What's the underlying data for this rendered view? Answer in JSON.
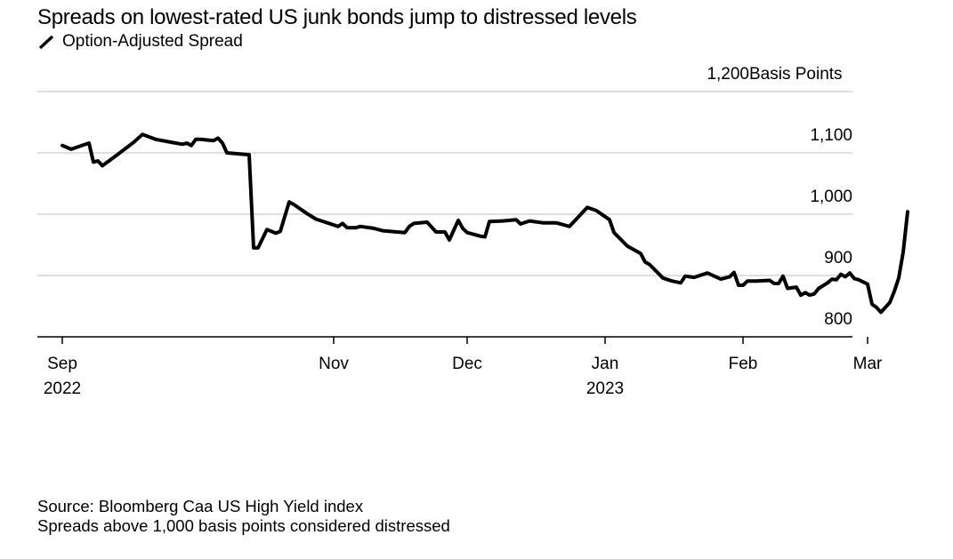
{
  "chart_data": {
    "type": "line",
    "title": "Spreads on lowest-rated US junk bonds jump to distressed levels",
    "legend": [
      "Option-Adjusted Spread"
    ],
    "ylabel": "Basis Points",
    "ylim": [
      800,
      1200
    ],
    "y_ticks": [
      {
        "value": 800,
        "label": "800"
      },
      {
        "value": 900,
        "label": "900"
      },
      {
        "value": 1000,
        "label": "1,000"
      },
      {
        "value": 1100,
        "label": "1,100"
      },
      {
        "value": 1200,
        "label": "1,200"
      }
    ],
    "x_ticks": [
      {
        "day": 0,
        "label": "Sep",
        "sublabel": "2022"
      },
      {
        "day": 61,
        "label": "Nov",
        "sublabel": ""
      },
      {
        "day": 91,
        "label": "Dec",
        "sublabel": ""
      },
      {
        "day": 122,
        "label": "Jan",
        "sublabel": "2023"
      },
      {
        "day": 153,
        "label": "Feb",
        "sublabel": ""
      },
      {
        "day": 181,
        "label": "Mar",
        "sublabel": ""
      }
    ],
    "x_unit": "days since Sep 1, 2022",
    "series": [
      {
        "name": "Option-Adjusted Spread",
        "x": [
          0,
          2,
          6,
          7,
          8,
          9,
          12,
          16,
          18,
          21,
          24,
          27,
          28,
          29,
          30,
          31,
          34,
          35,
          36,
          37,
          42,
          43,
          44,
          46,
          48,
          49,
          51,
          52,
          55,
          57,
          62,
          63,
          64,
          66,
          67,
          70,
          72,
          77,
          78,
          79,
          82,
          84,
          86,
          87,
          89,
          90,
          91,
          94,
          95,
          96,
          99,
          102,
          103,
          105,
          108,
          110,
          111,
          114,
          118,
          120,
          121,
          123,
          124,
          127,
          130,
          131,
          132,
          135,
          137,
          139,
          140,
          142,
          145,
          148,
          150,
          151,
          152,
          153,
          154,
          156,
          159,
          160,
          161,
          162,
          163,
          165,
          166,
          167,
          168,
          169,
          170,
          172,
          173,
          174,
          175,
          176,
          177,
          178,
          179,
          181,
          182,
          183,
          184,
          186,
          187,
          188,
          189,
          190
        ],
        "values": [
          1112,
          1106,
          1116,
          1085,
          1087,
          1079,
          1095,
          1117,
          1130,
          1122,
          1118,
          1114,
          1116,
          1112,
          1122,
          1122,
          1120,
          1124,
          1116,
          1100,
          1097,
          945,
          945,
          975,
          969,
          972,
          1020,
          1016,
          1001,
          992,
          980,
          985,
          978,
          978,
          980,
          977,
          973,
          970,
          980,
          985,
          987,
          971,
          971,
          958,
          990,
          977,
          970,
          964,
          963,
          988,
          989,
          991,
          984,
          989,
          986,
          986,
          986,
          980,
          1011,
          1006,
          1001,
          991,
          970,
          948,
          936,
          922,
          918,
          896,
          891,
          888,
          899,
          897,
          904,
          894,
          898,
          905,
          884,
          884,
          891,
          891,
          892,
          887,
          887,
          899,
          879,
          881,
          868,
          872,
          868,
          870,
          879,
          888,
          894,
          893,
          902,
          898,
          904,
          895,
          893,
          886,
          853,
          848,
          840,
          856,
          874,
          896,
          938,
          1004
        ]
      }
    ]
  },
  "footer": {
    "source": "Source: Bloomberg Caa US High Yield index",
    "note": "Spreads above 1,000 basis points considered distressed"
  }
}
